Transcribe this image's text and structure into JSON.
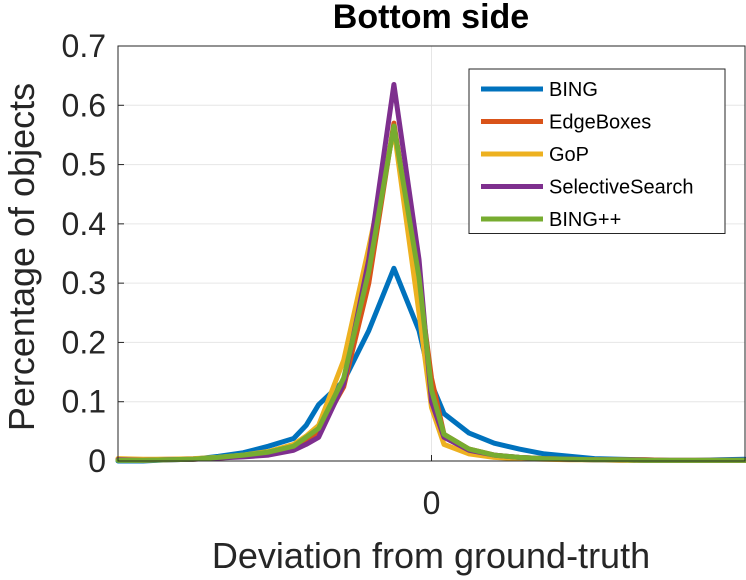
{
  "chart_data": {
    "type": "line",
    "title": "Bottom side",
    "xlabel": "Deviation from ground-truth",
    "ylabel": "Percentage of objects",
    "xlim": [
      -1,
      1
    ],
    "ylim": [
      0,
      0.7
    ],
    "xticks": [
      0
    ],
    "xtick_labels": [
      "0"
    ],
    "yticks": [
      0,
      0.1,
      0.2,
      0.3,
      0.4,
      0.5,
      0.6,
      0.7
    ],
    "ytick_labels": [
      "0",
      "0.1",
      "0.2",
      "0.3",
      "0.4",
      "0.5",
      "0.6",
      "0.7"
    ],
    "grid": true,
    "legend_position": "top-right",
    "x": [
      -1,
      -0.92,
      -0.84,
      -0.76,
      -0.68,
      -0.6,
      -0.52,
      -0.44,
      -0.4,
      -0.36,
      -0.28,
      -0.2,
      -0.12,
      -0.04,
      0,
      0.04,
      0.12,
      0.2,
      0.28,
      0.36,
      0.44,
      0.52,
      0.6,
      0.68,
      0.76,
      0.84,
      0.92,
      1
    ],
    "series": [
      {
        "name": "BING",
        "color": "#0072BD",
        "values": [
          0.0,
          0.0,
          0.002,
          0.003,
          0.008,
          0.014,
          0.025,
          0.038,
          0.06,
          0.095,
          0.135,
          0.22,
          0.325,
          0.22,
          0.13,
          0.08,
          0.047,
          0.03,
          0.02,
          0.012,
          0.008,
          0.004,
          0.003,
          0.002,
          0.001,
          0.001,
          0.002,
          0.003
        ]
      },
      {
        "name": "EdgeBoxes",
        "color": "#D95319",
        "values": [
          0.003,
          0.002,
          0.003,
          0.003,
          0.005,
          0.008,
          0.013,
          0.022,
          0.035,
          0.05,
          0.125,
          0.3,
          0.57,
          0.3,
          0.14,
          0.045,
          0.02,
          0.01,
          0.006,
          0.004,
          0.003,
          0.002,
          0.002,
          0.002,
          0.001,
          0.001,
          0.001,
          0.001
        ]
      },
      {
        "name": "GoP",
        "color": "#EDB120",
        "values": [
          0.004,
          0.003,
          0.003,
          0.004,
          0.006,
          0.01,
          0.016,
          0.028,
          0.042,
          0.06,
          0.17,
          0.36,
          0.56,
          0.25,
          0.09,
          0.028,
          0.012,
          0.006,
          0.004,
          0.003,
          0.002,
          0.002,
          0.001,
          0.001,
          0.001,
          0.001,
          0.001,
          0.001
        ]
      },
      {
        "name": "SelectiveSearch",
        "color": "#7E2F8E",
        "values": [
          0.002,
          0.001,
          0.002,
          0.003,
          0.005,
          0.007,
          0.01,
          0.018,
          0.028,
          0.04,
          0.13,
          0.34,
          0.635,
          0.34,
          0.1,
          0.04,
          0.018,
          0.01,
          0.006,
          0.004,
          0.003,
          0.002,
          0.002,
          0.001,
          0.001,
          0.001,
          0.001,
          0.001
        ]
      },
      {
        "name": "BING++",
        "color": "#77AC30",
        "values": [
          0.001,
          0.001,
          0.002,
          0.003,
          0.006,
          0.01,
          0.015,
          0.025,
          0.04,
          0.055,
          0.14,
          0.32,
          0.565,
          0.31,
          0.12,
          0.045,
          0.02,
          0.01,
          0.006,
          0.004,
          0.003,
          0.002,
          0.002,
          0.001,
          0.001,
          0.001,
          0.001,
          0.001
        ]
      }
    ]
  }
}
